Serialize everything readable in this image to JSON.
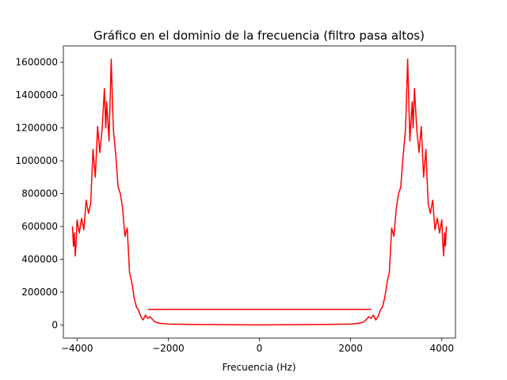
{
  "chart_data": {
    "type": "line",
    "title": "Gráfico en el dominio de la frecuencia (filtro pasa altos)",
    "xlabel": "Frecuencia (Hz)",
    "ylabel": "",
    "xlim": [
      -4300,
      4300
    ],
    "ylim": [
      -80000,
      1700000
    ],
    "xticks": [
      -4000,
      -2000,
      0,
      2000,
      4000
    ],
    "xtick_labels": [
      "−4000",
      "−2000",
      "0",
      "2000",
      "4000"
    ],
    "yticks": [
      0,
      200000,
      400000,
      600000,
      800000,
      1000000,
      1200000,
      1400000,
      1600000
    ],
    "ytick_labels": [
      "0",
      "200000",
      "400000",
      "600000",
      "800000",
      "1000000",
      "1200000",
      "1400000",
      "1600000"
    ],
    "grid": false,
    "series": [
      {
        "color": "#ff0000",
        "x": [
          -4100,
          -4080,
          -4060,
          -4040,
          -4020,
          -4000,
          -3950,
          -3900,
          -3850,
          -3800,
          -3750,
          -3700,
          -3650,
          -3600,
          -3550,
          -3500,
          -3450,
          -3400,
          -3370,
          -3350,
          -3300,
          -3250,
          -3220,
          -3200,
          -3150,
          -3100,
          -3050,
          -3000,
          -2950,
          -2900,
          -2850,
          -2800,
          -2750,
          -2700,
          -2650,
          -2600,
          -2550,
          -2500,
          -2450,
          -2400,
          -2300,
          -2200,
          -2000,
          -1500,
          -1000,
          -500,
          0,
          500,
          1000,
          1500,
          2000,
          2200,
          2300,
          2400,
          2450,
          2500,
          2550,
          2600,
          2650,
          2700,
          2750,
          2800,
          2850,
          2900,
          2950,
          3000,
          3050,
          3100,
          3150,
          3200,
          3220,
          3250,
          3300,
          3350,
          3370,
          3400,
          3450,
          3500,
          3550,
          3600,
          3650,
          3700,
          3750,
          3800,
          3850,
          3900,
          3950,
          4000,
          4020,
          4040,
          4060,
          4080,
          4100
        ],
        "y": [
          600000,
          480000,
          560000,
          420000,
          500000,
          640000,
          560000,
          650000,
          580000,
          760000,
          680000,
          740000,
          1070000,
          900000,
          1210000,
          1050000,
          1190000,
          1440000,
          1200000,
          1360000,
          1120000,
          1620000,
          1320000,
          1180000,
          1030000,
          840000,
          800000,
          710000,
          540000,
          590000,
          320000,
          260000,
          170000,
          110000,
          90000,
          50000,
          30000,
          60000,
          40000,
          50000,
          20000,
          10000,
          5000,
          3000,
          2000,
          1000,
          0,
          1000,
          2000,
          3000,
          5000,
          10000,
          20000,
          50000,
          40000,
          60000,
          30000,
          50000,
          90000,
          110000,
          170000,
          260000,
          320000,
          590000,
          540000,
          710000,
          800000,
          840000,
          1030000,
          1180000,
          1320000,
          1620000,
          1120000,
          1360000,
          1200000,
          1440000,
          1190000,
          1050000,
          1210000,
          900000,
          1070000,
          740000,
          680000,
          760000,
          580000,
          650000,
          560000,
          640000,
          500000,
          420000,
          560000,
          480000,
          600000
        ]
      },
      {
        "color": "#ff0000",
        "x": [
          -2450,
          2450
        ],
        "y": [
          95000,
          95000
        ]
      }
    ]
  }
}
